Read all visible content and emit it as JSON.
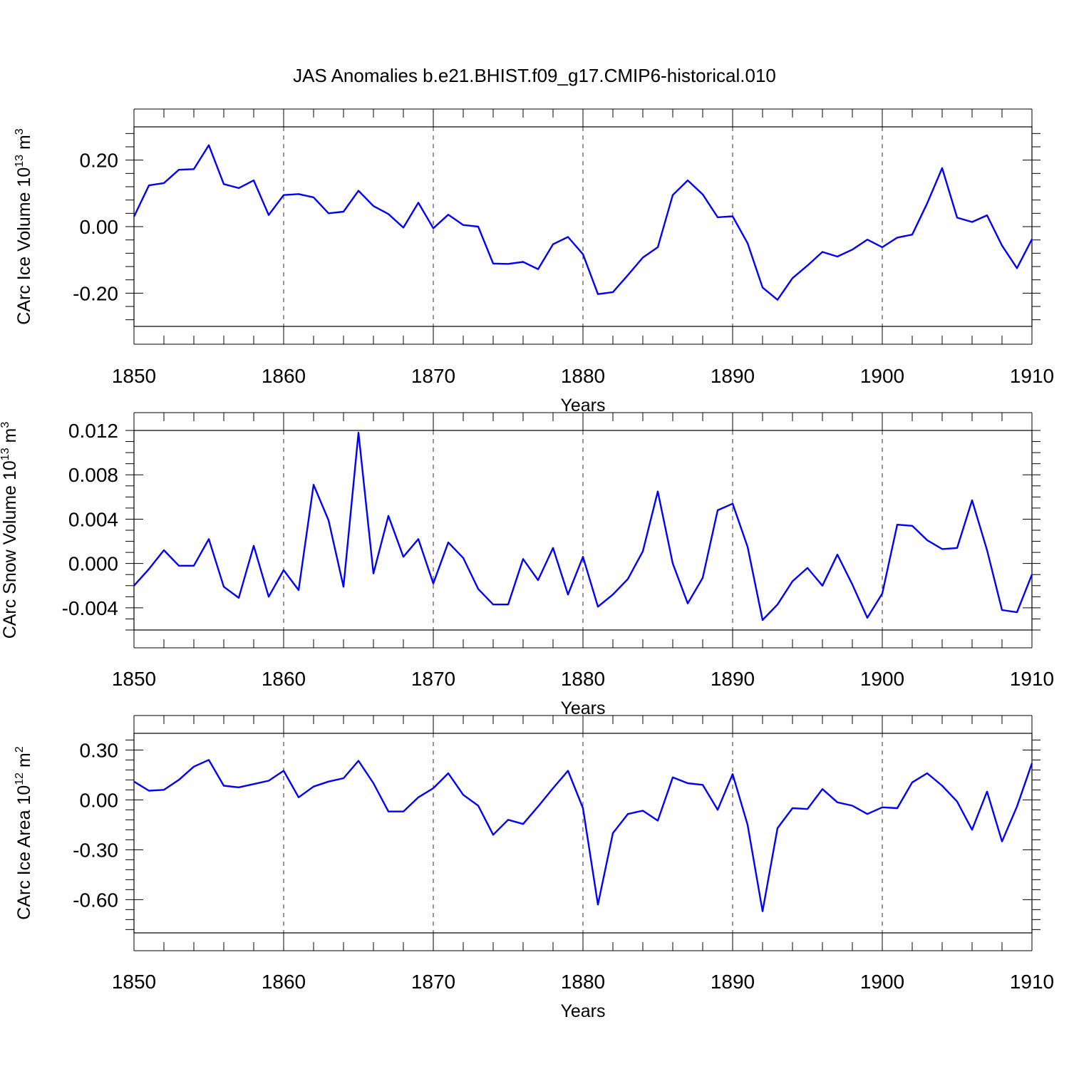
{
  "chart_data": [
    {
      "type": "line",
      "title": "JAS Anomalies b.e21.BHIST.f09_g17.CMIP6-historical.010",
      "xlabel": "Years",
      "ylabel": "CArc Ice Volume 10",
      "ylabel_exponent": "13",
      "ylabel_unit": " m",
      "ylabel_unit_exponent": "3",
      "xlim": [
        1850,
        1910
      ],
      "ylim": [
        -0.3,
        0.3
      ],
      "x_ticks": [
        1850,
        1860,
        1870,
        1880,
        1890,
        1900,
        1910
      ],
      "x_tick_labels": [
        "1850",
        "1860",
        "1870",
        "1880",
        "1890",
        "1900",
        "1910"
      ],
      "y_ticks": [
        -0.2,
        0.0,
        0.2
      ],
      "y_tick_labels": [
        "-0.20",
        "0.00",
        "0.20"
      ],
      "x_minor_step": 2,
      "y_minor_step": 0.04,
      "grid": "vertical dashed at major x ticks",
      "color": "#0000ff",
      "x_start": 1850,
      "values": [
        0.03,
        0.124,
        0.131,
        0.171,
        0.173,
        0.245,
        0.128,
        0.116,
        0.139,
        0.035,
        0.095,
        0.098,
        0.088,
        0.04,
        0.045,
        0.108,
        0.062,
        0.038,
        -0.003,
        0.072,
        -0.005,
        0.036,
        0.005,
        0.0,
        -0.111,
        -0.112,
        -0.106,
        -0.128,
        -0.053,
        -0.031,
        -0.083,
        -0.203,
        -0.197,
        -0.146,
        -0.093,
        -0.062,
        0.095,
        0.139,
        0.097,
        0.028,
        0.031,
        -0.05,
        -0.183,
        -0.22,
        -0.155,
        -0.117,
        -0.076,
        -0.09,
        -0.069,
        -0.039,
        -0.062,
        -0.033,
        -0.024,
        0.07,
        0.176,
        0.027,
        0.014,
        0.034,
        -0.057,
        -0.125,
        -0.038
      ]
    },
    {
      "type": "line",
      "title": "",
      "xlabel": "Years",
      "ylabel": "CArc Snow Volume 10",
      "ylabel_exponent": "13",
      "ylabel_unit": " m",
      "ylabel_unit_exponent": "3",
      "xlim": [
        1850,
        1910
      ],
      "ylim": [
        -0.006,
        0.012
      ],
      "x_ticks": [
        1850,
        1860,
        1870,
        1880,
        1890,
        1900,
        1910
      ],
      "x_tick_labels": [
        "1850",
        "1860",
        "1870",
        "1880",
        "1890",
        "1900",
        "1910"
      ],
      "y_ticks": [
        -0.004,
        0.0,
        0.004,
        0.008,
        0.012
      ],
      "y_tick_labels": [
        "-0.004",
        "0.000",
        "0.004",
        "0.008",
        "0.012"
      ],
      "x_minor_step": 2,
      "y_minor_step": 0.001,
      "grid": "vertical dashed at major x ticks",
      "color": "#0000ff",
      "x_start": 1850,
      "values": [
        -0.002,
        -0.0005,
        0.0012,
        -0.0002,
        -0.0002,
        0.0022,
        -0.0021,
        -0.0031,
        0.0016,
        -0.003,
        -0.0006,
        -0.0024,
        0.0071,
        0.0039,
        -0.0021,
        0.0118,
        -0.0009,
        0.0043,
        0.0006,
        0.0022,
        -0.0018,
        0.0019,
        0.0005,
        -0.0023,
        -0.0037,
        -0.0037,
        0.0004,
        -0.0015,
        0.0014,
        -0.0028,
        0.0006,
        -0.0039,
        -0.0028,
        -0.0014,
        0.0011,
        0.0065,
        0.0,
        -0.0036,
        -0.0013,
        0.0048,
        0.0054,
        0.0015,
        -0.0051,
        -0.0037,
        -0.0016,
        -0.0004,
        -0.002,
        0.0008,
        -0.0019,
        -0.0049,
        -0.0027,
        0.0035,
        0.0034,
        0.0021,
        0.0013,
        0.0014,
        0.0057,
        0.0012,
        -0.0042,
        -0.0044,
        -0.001
      ]
    },
    {
      "type": "line",
      "title": "",
      "xlabel": "Years",
      "ylabel": "CArc Ice Area 10",
      "ylabel_exponent": "12",
      "ylabel_unit": " m",
      "ylabel_unit_exponent": "2",
      "xlim": [
        1850,
        1910
      ],
      "ylim": [
        -0.8,
        0.4
      ],
      "x_ticks": [
        1850,
        1860,
        1870,
        1880,
        1890,
        1900,
        1910
      ],
      "x_tick_labels": [
        "1850",
        "1860",
        "1870",
        "1880",
        "1890",
        "1900",
        "1910"
      ],
      "y_ticks": [
        -0.6,
        -0.3,
        0.0,
        0.3
      ],
      "y_tick_labels": [
        "-0.60",
        "-0.30",
        "0.00",
        "0.30"
      ],
      "x_minor_step": 2,
      "y_minor_step": 0.06,
      "grid": "vertical dashed at major x ticks",
      "color": "#0000ff",
      "x_start": 1850,
      "values": [
        0.11,
        0.055,
        0.06,
        0.12,
        0.2,
        0.24,
        0.085,
        0.075,
        0.095,
        0.115,
        0.175,
        0.015,
        0.08,
        0.11,
        0.13,
        0.235,
        0.1,
        -0.07,
        -0.07,
        0.015,
        0.07,
        0.16,
        0.03,
        -0.035,
        -0.21,
        -0.12,
        -0.145,
        -0.04,
        0.07,
        0.175,
        -0.05,
        -0.63,
        -0.2,
        -0.085,
        -0.065,
        -0.125,
        0.135,
        0.1,
        0.09,
        -0.06,
        0.155,
        -0.15,
        -0.67,
        -0.17,
        -0.05,
        -0.055,
        0.065,
        -0.015,
        -0.035,
        -0.085,
        -0.045,
        -0.05,
        0.105,
        0.16,
        0.085,
        -0.01,
        -0.18,
        0.05,
        -0.25,
        -0.04,
        0.22
      ]
    }
  ]
}
